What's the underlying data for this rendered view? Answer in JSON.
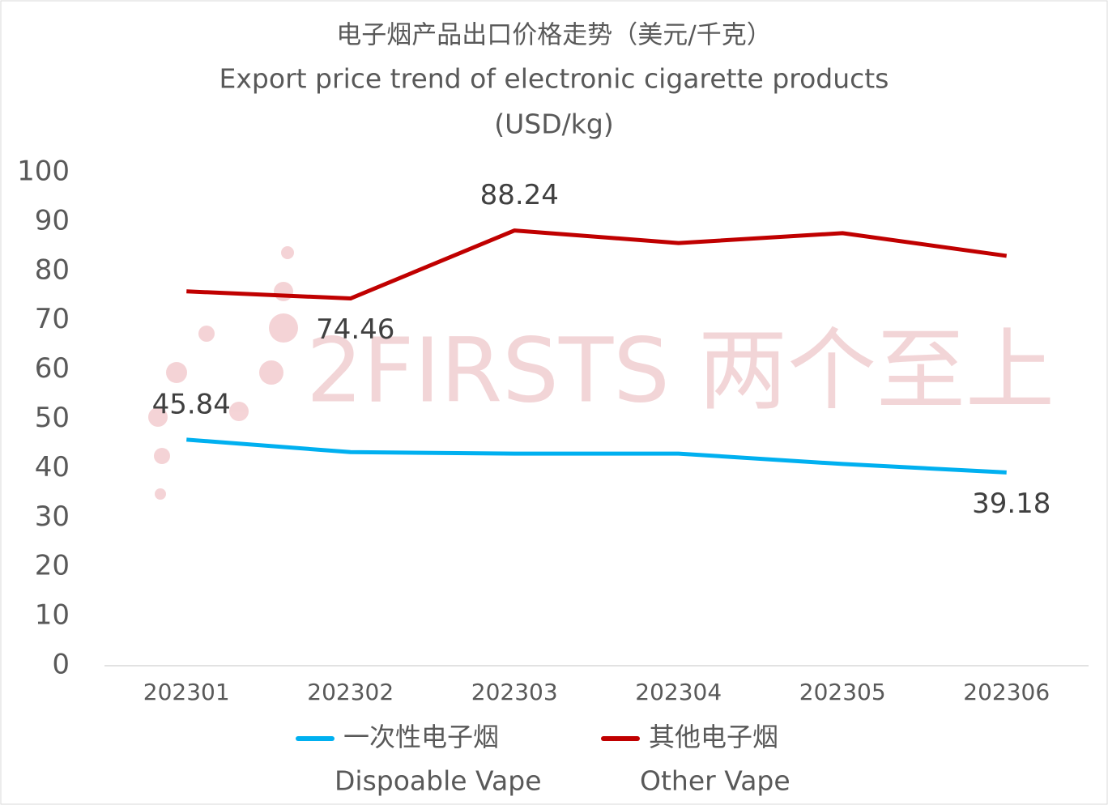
{
  "chart_data": {
    "type": "line",
    "title": "电子烟产品出口价格走势（美元/千克）",
    "subtitle": [
      "Export price trend of electronic cigarette products",
      "(USD/kg)"
    ],
    "watermark": "2FIRSTS 两个至上",
    "categories": [
      "202301",
      "202302",
      "202303",
      "202304",
      "202305",
      "202306"
    ],
    "series": [
      {
        "name": "一次性电子烟",
        "name_en": "Dispoable Vape",
        "color": "#00b0f0",
        "values": [
          45.84,
          43.3,
          43.0,
          43.0,
          40.9,
          39.18
        ],
        "data_labels": [
          "above",
          null,
          null,
          null,
          null,
          "below"
        ]
      },
      {
        "name": "其他电子烟",
        "name_en": "Other Vape",
        "color": "#c00000",
        "values": [
          75.9,
          74.46,
          88.24,
          85.7,
          87.7,
          83.1
        ],
        "data_labels": [
          null,
          "below",
          "above",
          null,
          null,
          null
        ]
      }
    ],
    "ylim": [
      0,
      100
    ],
    "yticks": [
      0,
      10,
      20,
      30,
      40,
      50,
      60,
      70,
      80,
      90,
      100
    ],
    "grid": false,
    "legend": "bottom"
  }
}
